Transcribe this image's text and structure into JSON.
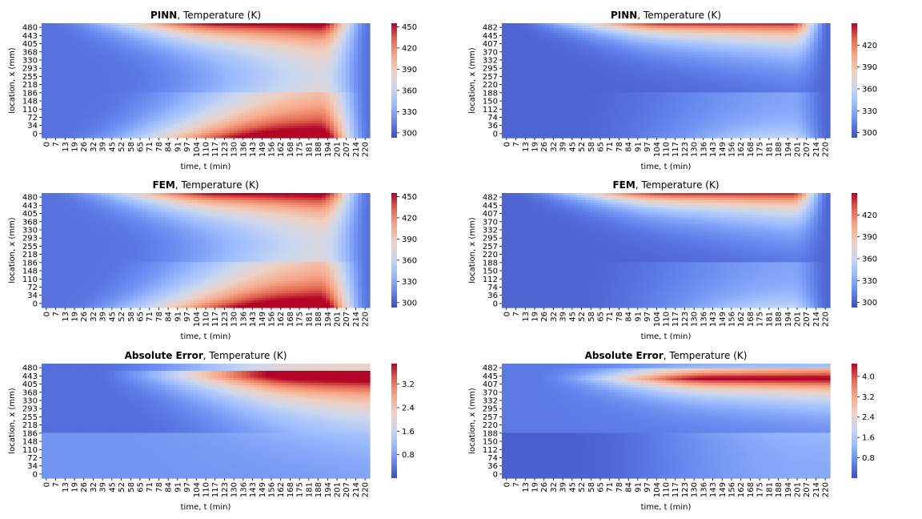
{
  "colormap": {
    "name": "coolwarm",
    "stops": [
      "#3b4cc0",
      "#6788ee",
      "#9abbff",
      "#c9d7f0",
      "#edd1c2",
      "#f7a889",
      "#e26952",
      "#b40426"
    ]
  },
  "chart_data": [
    {
      "type": "heatmap",
      "panel": "top-left",
      "title_bold": "PINN",
      "title_rest": ", Temperature (K)",
      "xlabel": "time, t (min)",
      "ylabel": "location, x (mm)",
      "pattern": "temp_A",
      "x_ticks": [
        "0",
        "7",
        "13",
        "19",
        "26",
        "32",
        "39",
        "45",
        "52",
        "58",
        "65",
        "71",
        "78",
        "84",
        "91",
        "97",
        "104",
        "110",
        "117",
        "123",
        "130",
        "136",
        "143",
        "149",
        "156",
        "162",
        "168",
        "175",
        "181",
        "188",
        "194",
        "201",
        "207",
        "214",
        "220"
      ],
      "y_ticks": [
        "0",
        "34",
        "72",
        "110",
        "148",
        "186",
        "218",
        "255",
        "293",
        "330",
        "368",
        "405",
        "443",
        "480"
      ],
      "colorbar": {
        "min": 293,
        "max": 455,
        "ticks": [
          "300",
          "330",
          "360",
          "390",
          "420",
          "450"
        ],
        "tick_values": [
          300,
          330,
          360,
          390,
          420,
          450
        ]
      }
    },
    {
      "type": "heatmap",
      "panel": "top-right",
      "title_bold": "PINN",
      "title_rest": ", Temperature (K)",
      "xlabel": "time, t (min)",
      "ylabel": "location, x (mm)",
      "pattern": "temp_B",
      "x_ticks": [
        "0",
        "7",
        "13",
        "19",
        "26",
        "32",
        "39",
        "45",
        "52",
        "58",
        "65",
        "71",
        "78",
        "84",
        "91",
        "97",
        "104",
        "110",
        "117",
        "123",
        "130",
        "136",
        "143",
        "149",
        "156",
        "162",
        "168",
        "175",
        "181",
        "188",
        "194",
        "201",
        "207",
        "214",
        "220"
      ],
      "y_ticks": [
        "0",
        "36",
        "74",
        "112",
        "150",
        "188",
        "220",
        "257",
        "295",
        "332",
        "370",
        "407",
        "445",
        "482"
      ],
      "colorbar": {
        "min": 293,
        "max": 450,
        "ticks": [
          "300",
          "330",
          "360",
          "390",
          "420"
        ],
        "tick_values": [
          300,
          330,
          360,
          390,
          420
        ]
      }
    },
    {
      "type": "heatmap",
      "panel": "middle-left",
      "title_bold": "FEM",
      "title_rest": ", Temperature (K)",
      "xlabel": "time, t (min)",
      "ylabel": "location, x (mm)",
      "pattern": "temp_A",
      "x_ticks": [
        "0",
        "7",
        "13",
        "19",
        "26",
        "32",
        "39",
        "45",
        "52",
        "58",
        "65",
        "71",
        "78",
        "84",
        "91",
        "97",
        "104",
        "110",
        "117",
        "123",
        "130",
        "136",
        "143",
        "149",
        "156",
        "162",
        "168",
        "175",
        "181",
        "188",
        "194",
        "201",
        "207",
        "214",
        "220"
      ],
      "y_ticks": [
        "0",
        "34",
        "72",
        "110",
        "148",
        "186",
        "218",
        "255",
        "293",
        "330",
        "368",
        "405",
        "443",
        "480"
      ],
      "colorbar": {
        "min": 293,
        "max": 455,
        "ticks": [
          "300",
          "330",
          "360",
          "390",
          "420",
          "450"
        ],
        "tick_values": [
          300,
          330,
          360,
          390,
          420,
          450
        ]
      }
    },
    {
      "type": "heatmap",
      "panel": "middle-right",
      "title_bold": "FEM",
      "title_rest": ", Temperature (K)",
      "xlabel": "time, t (min)",
      "ylabel": "location, x (mm)",
      "pattern": "temp_B",
      "x_ticks": [
        "0",
        "7",
        "13",
        "19",
        "26",
        "32",
        "39",
        "45",
        "52",
        "58",
        "65",
        "71",
        "78",
        "84",
        "91",
        "97",
        "104",
        "110",
        "117",
        "123",
        "130",
        "136",
        "143",
        "149",
        "156",
        "162",
        "168",
        "175",
        "181",
        "188",
        "194",
        "201",
        "207",
        "214",
        "220"
      ],
      "y_ticks": [
        "0",
        "36",
        "74",
        "112",
        "150",
        "188",
        "220",
        "257",
        "295",
        "332",
        "370",
        "407",
        "445",
        "482"
      ],
      "colorbar": {
        "min": 293,
        "max": 450,
        "ticks": [
          "300",
          "330",
          "360",
          "390",
          "420"
        ],
        "tick_values": [
          300,
          330,
          360,
          390,
          420
        ]
      }
    },
    {
      "type": "heatmap",
      "panel": "bottom-left",
      "title_bold": "Absolute Error",
      "title_rest": ", Temperature (K)",
      "xlabel": "time, t (min)",
      "ylabel": "location, x (mm)",
      "pattern": "err_A",
      "x_ticks": [
        "0",
        "7",
        "13",
        "19",
        "26",
        "32",
        "39",
        "45",
        "52",
        "58",
        "65",
        "71",
        "78",
        "84",
        "91",
        "97",
        "104",
        "110",
        "117",
        "123",
        "130",
        "136",
        "143",
        "149",
        "156",
        "162",
        "168",
        "175",
        "181",
        "188",
        "194",
        "201",
        "207",
        "214",
        "220"
      ],
      "y_ticks": [
        "0",
        "34",
        "72",
        "110",
        "148",
        "186",
        "218",
        "255",
        "293",
        "330",
        "368",
        "405",
        "443",
        "480"
      ],
      "colorbar": {
        "min": 0.0,
        "max": 3.9,
        "ticks": [
          "0.8",
          "1.6",
          "2.4",
          "3.2"
        ],
        "tick_values": [
          0.8,
          1.6,
          2.4,
          3.2
        ]
      }
    },
    {
      "type": "heatmap",
      "panel": "bottom-right",
      "title_bold": "Absolute Error",
      "title_rest": ", Temperature (K)",
      "xlabel": "time, t (min)",
      "ylabel": "location, x (mm)",
      "pattern": "err_B",
      "x_ticks": [
        "0",
        "7",
        "13",
        "19",
        "26",
        "32",
        "39",
        "45",
        "52",
        "58",
        "65",
        "71",
        "78",
        "84",
        "91",
        "97",
        "104",
        "110",
        "117",
        "123",
        "130",
        "136",
        "143",
        "149",
        "156",
        "162",
        "168",
        "175",
        "181",
        "188",
        "194",
        "201",
        "207",
        "214",
        "220"
      ],
      "y_ticks": [
        "0",
        "36",
        "74",
        "112",
        "150",
        "188",
        "220",
        "257",
        "295",
        "332",
        "370",
        "407",
        "445",
        "482"
      ],
      "colorbar": {
        "min": 0.0,
        "max": 4.5,
        "ticks": [
          "0.8",
          "1.6",
          "2.4",
          "3.2",
          "4.0"
        ],
        "tick_values": [
          0.8,
          1.6,
          2.4,
          3.2,
          4.0
        ]
      }
    }
  ]
}
